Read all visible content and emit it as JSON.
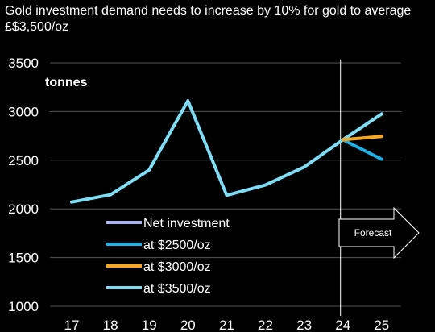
{
  "chart_data": {
    "type": "line",
    "title_lines": [
      "Gold investment demand needs to increase by 10% for gold to average",
      "£$3,500/oz"
    ],
    "unit_label": "tonnes",
    "x": [
      "17",
      "18",
      "19",
      "20",
      "21",
      "22",
      "23",
      "24",
      "25"
    ],
    "ylim": [
      1000,
      3500
    ],
    "yticks": [
      1000,
      1500,
      2000,
      2500,
      3000,
      3500
    ],
    "grid": true,
    "legend_position": "bottom-left",
    "series": [
      {
        "name": "Net investment",
        "color": "#aab4f0",
        "points": []
      },
      {
        "name": "at $2500/oz",
        "color": "#1fb1e8",
        "points": [
          [
            "24",
            2710
          ],
          [
            "25",
            2510
          ]
        ]
      },
      {
        "name": "at $3000/oz",
        "color": "#f5a623",
        "points": [
          [
            "24",
            2710
          ],
          [
            "25",
            2745
          ]
        ]
      },
      {
        "name": "at $3500/oz",
        "color": "#7fdcf5",
        "points": [
          [
            "17",
            2070
          ],
          [
            "18",
            2145
          ],
          [
            "19",
            2400
          ],
          [
            "20",
            3110
          ],
          [
            "21",
            2140
          ],
          [
            "22",
            2245
          ],
          [
            "23",
            2430
          ],
          [
            "24",
            2710
          ],
          [
            "25",
            2975
          ]
        ]
      }
    ],
    "forecast_label": "Forecast",
    "forecast_start": "24"
  }
}
